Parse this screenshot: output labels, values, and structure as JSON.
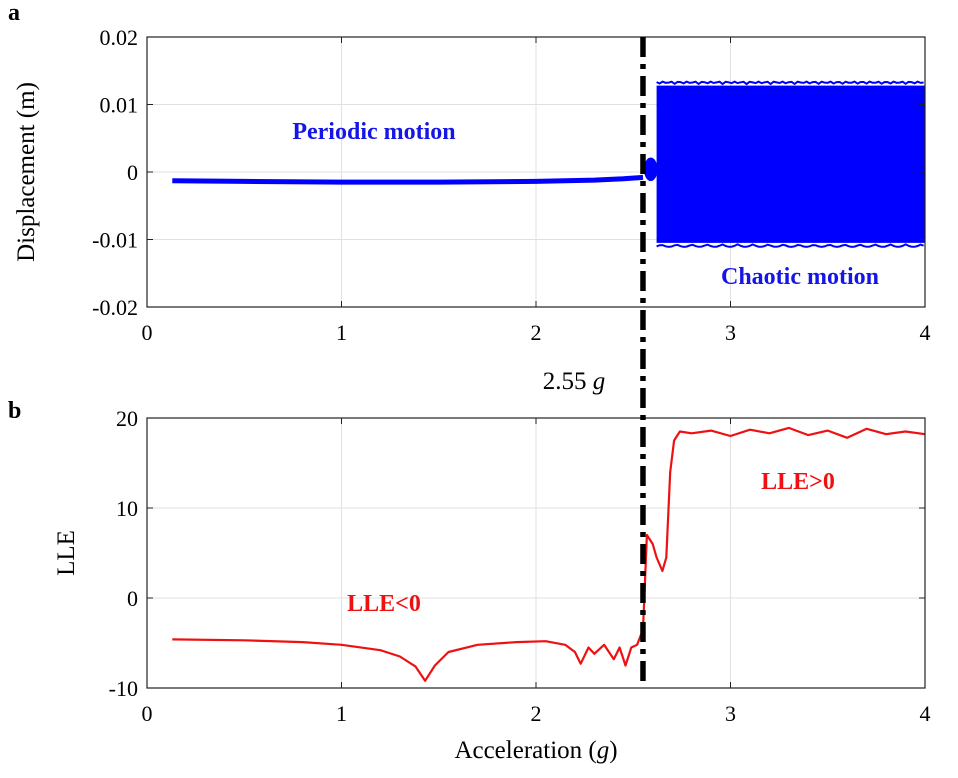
{
  "chart_data": [
    {
      "panel": "a",
      "type": "line",
      "xlabel": "",
      "ylabel": "Displacement (m)",
      "xlim": [
        0,
        4
      ],
      "ylim": [
        -0.02,
        0.02
      ],
      "xticks": [
        "0",
        "1",
        "2",
        "3",
        "4"
      ],
      "yticks": [
        "-0.02",
        "-0.01",
        "0",
        "0.01",
        "0.02"
      ],
      "grid": true,
      "color": "#0000ff",
      "series": [
        {
          "x": [
            0.13,
            0.5,
            1.0,
            1.5,
            2.0,
            2.3,
            2.45,
            2.55
          ],
          "y": [
            -0.0013,
            -0.0014,
            -0.0015,
            -0.0015,
            -0.0014,
            -0.0012,
            -0.001,
            -0.0008
          ]
        }
      ],
      "transition_blob": {
        "x": [
          2.56,
          2.62
        ],
        "ymin": -0.0012,
        "ymax": 0.002
      },
      "chaotic_band": {
        "x": [
          2.62,
          4.0
        ],
        "ymin": -0.0105,
        "ymax": 0.0128
      },
      "annotations": [
        "Periodic motion",
        "Chaotic motion"
      ]
    },
    {
      "panel": "b",
      "type": "line",
      "xlabel": "Acceleration (g)",
      "ylabel": "LLE",
      "xlim": [
        0,
        4
      ],
      "ylim": [
        -10,
        20
      ],
      "xticks": [
        "0",
        "1",
        "2",
        "3",
        "4"
      ],
      "yticks": [
        "-10",
        "0",
        "10",
        "20"
      ],
      "grid": true,
      "color": "#ee1111",
      "series": [
        {
          "x": [
            0.13,
            0.5,
            0.8,
            1.0,
            1.2,
            1.3,
            1.38,
            1.43,
            1.48,
            1.55,
            1.7,
            1.9,
            2.05,
            2.15,
            2.2,
            2.23,
            2.27,
            2.3,
            2.35,
            2.4,
            2.43,
            2.46,
            2.49,
            2.52,
            2.55,
            2.57,
            2.6,
            2.62,
            2.65,
            2.67,
            2.69,
            2.71,
            2.74,
            2.8,
            2.9,
            3.0,
            3.1,
            3.2,
            3.3,
            3.4,
            3.5,
            3.6,
            3.7,
            3.8,
            3.9,
            4.0
          ],
          "y": [
            -4.6,
            -4.7,
            -4.9,
            -5.2,
            -5.8,
            -6.5,
            -7.6,
            -9.2,
            -7.5,
            -6.0,
            -5.2,
            -4.9,
            -4.8,
            -5.2,
            -6.0,
            -7.3,
            -5.5,
            -6.2,
            -5.2,
            -6.8,
            -5.5,
            -7.5,
            -5.5,
            -5.2,
            -3.5,
            7.0,
            6.0,
            4.5,
            3.0,
            4.5,
            14.0,
            17.5,
            18.5,
            18.3,
            18.6,
            18.0,
            18.7,
            18.3,
            18.9,
            18.1,
            18.6,
            17.8,
            18.8,
            18.2,
            18.5,
            18.2
          ]
        }
      ],
      "annotations": [
        "LLE<0",
        "LLE>0"
      ]
    }
  ],
  "panel_labels": {
    "a": "a",
    "b": "b"
  },
  "threshold": {
    "x": 2.55,
    "label": "2.55 ",
    "unit": "g"
  }
}
